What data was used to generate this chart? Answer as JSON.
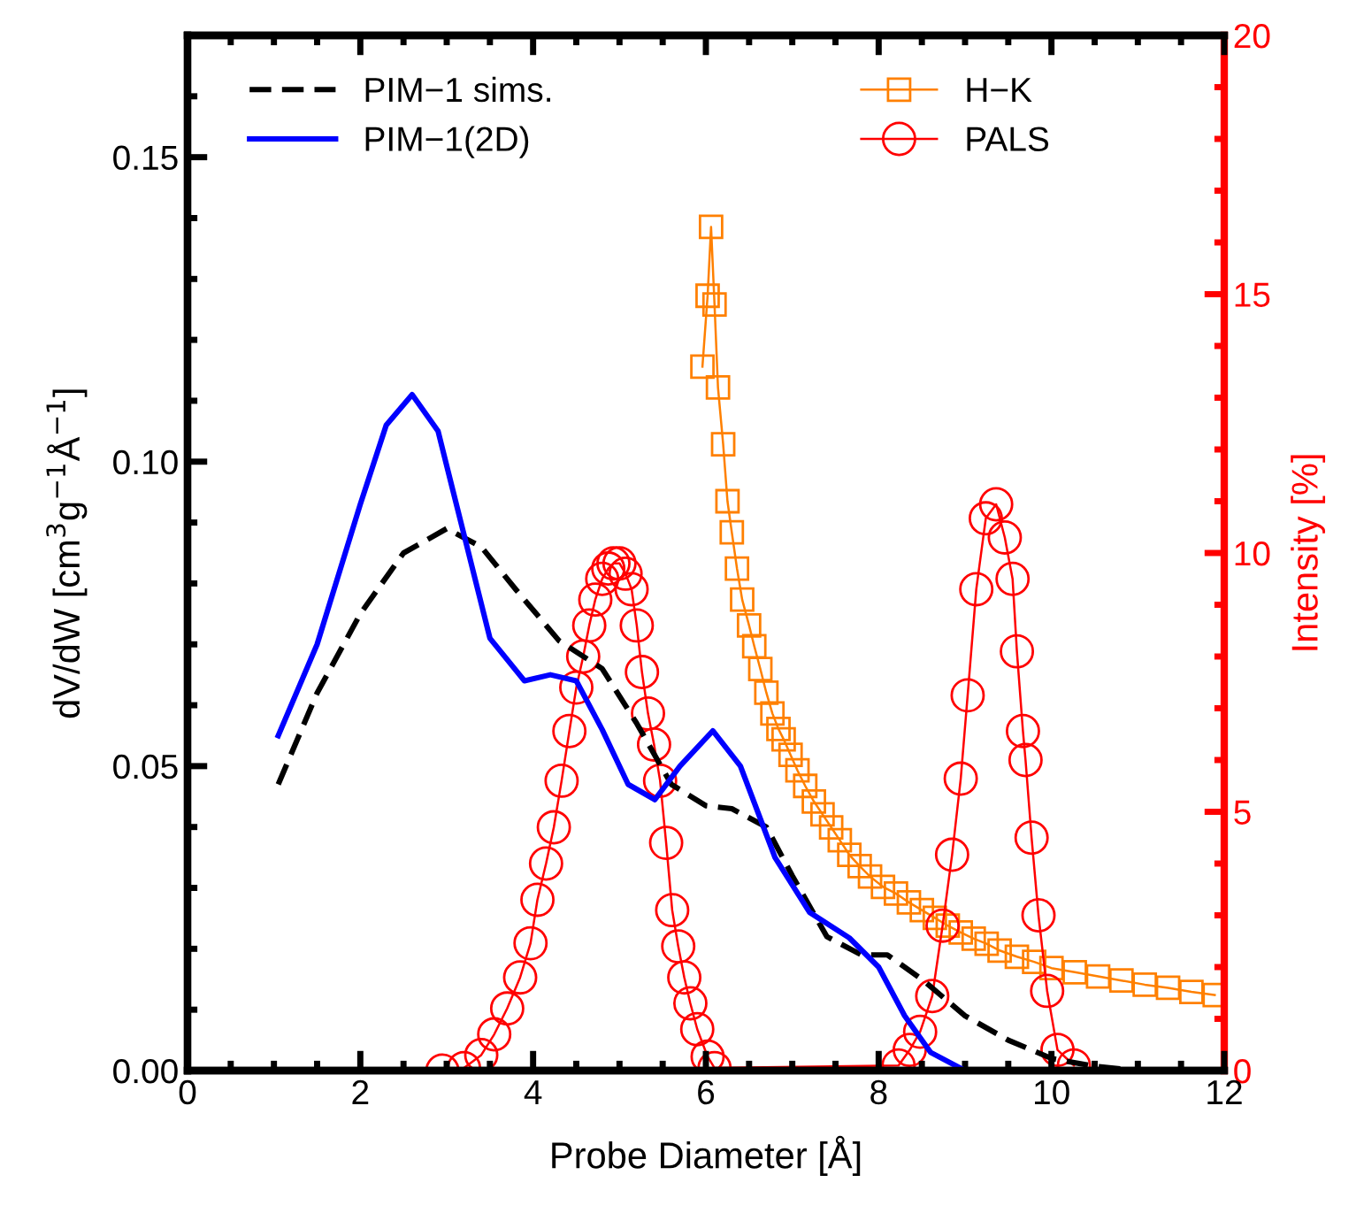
{
  "chart_data": {
    "type": "line",
    "xlabel": "Probe Diameter [Å]",
    "ylabel": "dV/dW [cm$^{3}$g$^{−1}$Å$^{−1}$]",
    "y2label": "Intensity [%]",
    "xlim": [
      0,
      12
    ],
    "ylim": [
      0,
      0.17
    ],
    "y2lim": [
      0,
      20
    ],
    "xticks": [
      0,
      {
        "value": 0.5,
        "label": null
      },
      {
        "value": 1,
        "label": null
      },
      {
        "value": 1.5,
        "label": null
      },
      2,
      {
        "value": 2.5,
        "label": null
      },
      {
        "value": 3,
        "label": null
      },
      {
        "value": 3.5,
        "label": null
      },
      4,
      {
        "value": 4.5,
        "label": null
      },
      {
        "value": 5,
        "label": null
      },
      {
        "value": 5.5,
        "label": null
      },
      6,
      {
        "value": 6.5,
        "label": null
      },
      {
        "value": 7,
        "label": null
      },
      {
        "value": 7.5,
        "label": null
      },
      8,
      {
        "value": 8.5,
        "label": null
      },
      {
        "value": 9,
        "label": null
      },
      {
        "value": 9.5,
        "label": null
      },
      10,
      {
        "value": 10.5,
        "label": null
      },
      {
        "value": 11,
        "label": null
      },
      {
        "value": 11.5,
        "label": null
      },
      12
    ],
    "yticks": [
      {
        "value": 0,
        "label": "0.00"
      },
      {
        "value": 0.01,
        "label": null
      },
      {
        "value": 0.02,
        "label": null
      },
      {
        "value": 0.03,
        "label": null
      },
      {
        "value": 0.04,
        "label": null
      },
      {
        "value": 0.05,
        "label": "0.05"
      },
      {
        "value": 0.06,
        "label": null
      },
      {
        "value": 0.07,
        "label": null
      },
      {
        "value": 0.08,
        "label": null
      },
      {
        "value": 0.09,
        "label": null
      },
      {
        "value": 0.1,
        "label": "0.10"
      },
      {
        "value": 0.11,
        "label": null
      },
      {
        "value": 0.12,
        "label": null
      },
      {
        "value": 0.13,
        "label": null
      },
      {
        "value": 0.14,
        "label": null
      },
      {
        "value": 0.15,
        "label": "0.15"
      },
      {
        "value": 0.16,
        "label": null
      }
    ],
    "y2ticks": [
      0,
      {
        "value": 1,
        "label": null
      },
      {
        "value": 2,
        "label": null
      },
      {
        "value": 3,
        "label": null
      },
      {
        "value": 4,
        "label": null
      },
      5,
      {
        "value": 6,
        "label": null
      },
      {
        "value": 7,
        "label": null
      },
      {
        "value": 8,
        "label": null
      },
      {
        "value": 9,
        "label": null
      },
      10,
      {
        "value": 11,
        "label": null
      },
      {
        "value": 12,
        "label": null
      },
      {
        "value": 13,
        "label": null
      },
      {
        "value": 14,
        "label": null
      },
      15,
      {
        "value": 16,
        "label": null
      },
      {
        "value": 17,
        "label": null
      },
      {
        "value": 18,
        "label": null
      },
      {
        "value": 19,
        "label": null
      },
      20
    ],
    "grid": false,
    "legend": "top",
    "series": [
      {
        "name": "PIM−1 sims.",
        "color": "#000000",
        "line_style": "dashed",
        "marker": "none",
        "x": [
          1.05,
          1.5,
          2.0,
          2.5,
          3.0,
          3.4,
          3.8,
          4.3,
          4.8,
          5.2,
          5.6,
          6.0,
          6.3,
          6.7,
          7.0,
          7.4,
          7.8,
          8.1,
          8.5,
          9.0,
          9.5,
          10.0,
          10.5,
          11.0
        ],
        "values": [
          0.047,
          0.062,
          0.075,
          0.085,
          0.089,
          0.086,
          0.079,
          0.0706,
          0.066,
          0.057,
          0.047,
          0.0435,
          0.043,
          0.04,
          0.032,
          0.022,
          0.019,
          0.019,
          0.015,
          0.009,
          0.005,
          0.002,
          0.0007,
          0
        ]
      },
      {
        "name": "PIM−1(2D)",
        "color": "#0000ff",
        "line_style": "solid",
        "marker": "none",
        "x": [
          1.05,
          1.5,
          2.0,
          2.3,
          2.6,
          2.9,
          3.2,
          3.5,
          3.9,
          4.2,
          4.5,
          4.8,
          5.1,
          5.41,
          5.7,
          6.08,
          6.4,
          6.8,
          7.2,
          7.66,
          8.0,
          8.3,
          8.6,
          9.0
        ],
        "values": [
          0.055,
          0.07,
          0.093,
          0.106,
          0.111,
          0.105,
          0.088,
          0.071,
          0.064,
          0.065,
          0.064,
          0.056,
          0.047,
          0.0445,
          0.05,
          0.0558,
          0.05,
          0.035,
          0.026,
          0.0218,
          0.017,
          0.009,
          0.003,
          0
        ]
      },
      {
        "name": "H−K",
        "color": "#ff8000",
        "axis": "y2",
        "line_style": "solid",
        "marker": "square",
        "x": [
          5.96,
          6.02,
          6.06,
          6.1,
          6.14,
          6.2,
          6.25,
          6.3,
          6.36,
          6.42,
          6.5,
          6.56,
          6.63,
          6.7,
          6.77,
          6.84,
          6.9,
          6.98,
          7.06,
          7.15,
          7.25,
          7.35,
          7.45,
          7.55,
          7.66,
          7.78,
          7.9,
          8.05,
          8.2,
          8.35,
          8.5,
          8.65,
          8.8,
          8.95,
          9.1,
          9.25,
          9.4,
          9.6,
          9.8,
          10.0,
          10.27,
          10.54,
          10.81,
          11.08,
          11.35,
          11.62,
          11.89
        ],
        "values": [
          13.6,
          14.97,
          16.3,
          14.8,
          13.2,
          12.1,
          11.0,
          10.4,
          9.7,
          9.1,
          8.6,
          8.2,
          7.76,
          7.3,
          6.9,
          6.6,
          6.4,
          6.1,
          5.8,
          5.5,
          5.2,
          4.95,
          4.7,
          4.45,
          4.17,
          3.95,
          3.75,
          3.55,
          3.42,
          3.25,
          3.1,
          2.95,
          2.8,
          2.67,
          2.55,
          2.45,
          2.32,
          2.2,
          2.1,
          1.98,
          1.9,
          1.82,
          1.74,
          1.66,
          1.6,
          1.52,
          1.46
        ]
      },
      {
        "name": "PALS",
        "color": "#ff0000",
        "axis": "y2",
        "line_style": "solid",
        "marker": "circle",
        "x": [
          2.95,
          3.2,
          3.4,
          3.55,
          3.7,
          3.85,
          3.97,
          4.05,
          4.15,
          4.24,
          4.33,
          4.42,
          4.5,
          4.58,
          4.65,
          4.72,
          4.8,
          4.87,
          4.93,
          5.0,
          5.07,
          5.14,
          5.2,
          5.26,
          5.33,
          5.4,
          5.47,
          5.54,
          5.61,
          5.68,
          5.75,
          5.82,
          5.9,
          6.02,
          6.1,
          8.23,
          8.36,
          8.48,
          8.62,
          8.74,
          8.85,
          8.95,
          9.03,
          9.13,
          9.24,
          9.36,
          9.46,
          9.55,
          9.6,
          9.67,
          9.7,
          9.77,
          9.85,
          9.95,
          10.07,
          10.26
        ],
        "values": [
          0,
          0.05,
          0.3,
          0.7,
          1.2,
          1.8,
          2.46,
          3.3,
          4.0,
          4.7,
          5.6,
          6.56,
          7.4,
          8.0,
          8.6,
          9.1,
          9.5,
          9.7,
          9.8,
          9.8,
          9.6,
          9.3,
          8.6,
          7.7,
          6.9,
          6.3,
          5.6,
          4.4,
          3.1,
          2.4,
          1.8,
          1.3,
          0.8,
          0.27,
          0.05,
          0.1,
          0.4,
          0.75,
          1.44,
          2.8,
          4.17,
          5.64,
          7.25,
          9.3,
          10.67,
          10.94,
          10.3,
          9.5,
          8.1,
          6.56,
          6.0,
          4.5,
          3.0,
          1.54,
          0.4,
          0.1
        ]
      }
    ]
  }
}
